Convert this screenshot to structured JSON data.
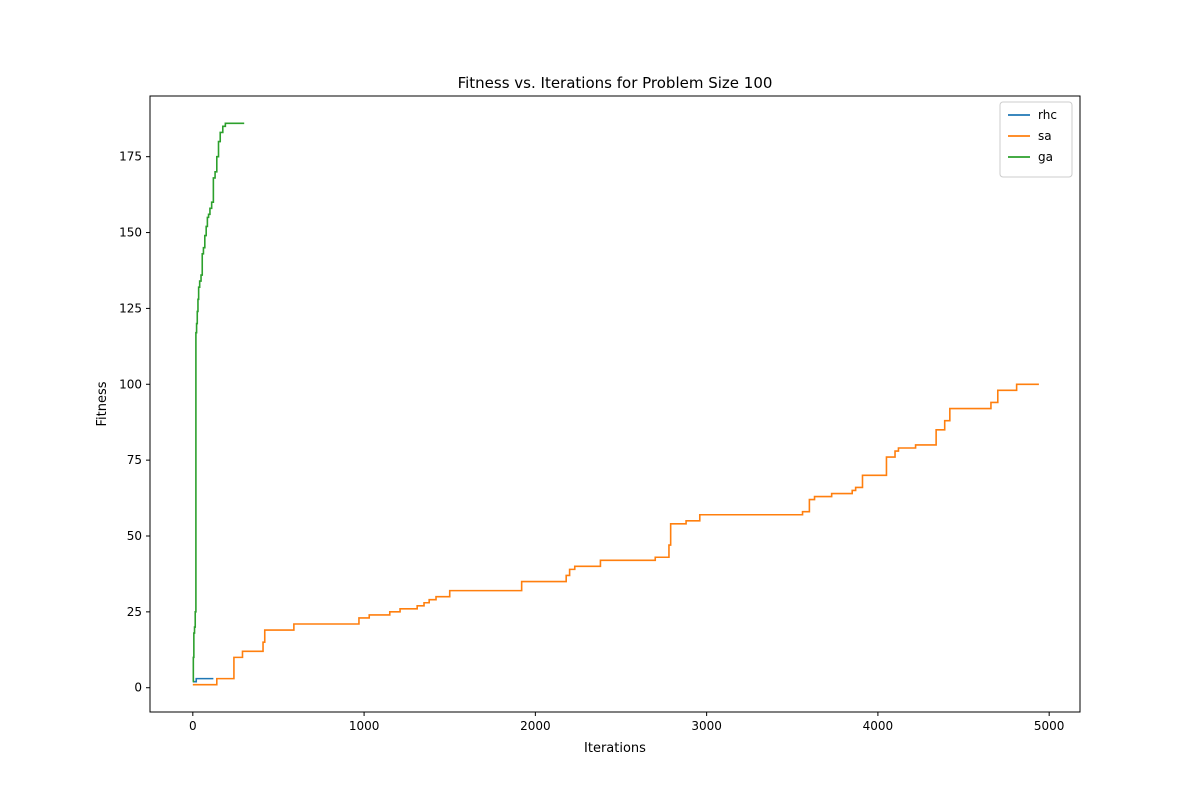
{
  "chart_data": {
    "type": "line",
    "title": "Fitness vs. Iterations for Problem Size 100",
    "xlabel": "Iterations",
    "ylabel": "Fitness",
    "xlim": [
      -250,
      5180
    ],
    "ylim": [
      -8,
      195
    ],
    "xticks": [
      0,
      1000,
      2000,
      3000,
      4000,
      5000
    ],
    "yticks": [
      0,
      25,
      50,
      75,
      100,
      125,
      150,
      175
    ],
    "grid": false,
    "legend_position": "top-right",
    "series": [
      {
        "name": "rhc",
        "color": "#1f77b4",
        "step": true,
        "x": [
          0,
          20,
          120
        ],
        "y": [
          2,
          3,
          3
        ]
      },
      {
        "name": "sa",
        "color": "#ff7f0e",
        "step": true,
        "x": [
          0,
          130,
          140,
          240,
          290,
          410,
          420,
          580,
          590,
          970,
          1030,
          1150,
          1210,
          1310,
          1350,
          1380,
          1420,
          1460,
          1500,
          1920,
          2180,
          2200,
          2230,
          2380,
          2700,
          2780,
          2790,
          2880,
          2960,
          3560,
          3600,
          3630,
          3730,
          3850,
          3870,
          3910,
          3980,
          4050,
          4100,
          4120,
          4220,
          4340,
          4390,
          4420,
          4660,
          4700,
          4800,
          4810,
          4940
        ],
        "y": [
          1,
          1,
          3,
          10,
          12,
          15,
          19,
          19,
          21,
          23,
          24,
          25,
          26,
          27,
          28,
          29,
          30,
          30,
          32,
          35,
          37,
          39,
          40,
          42,
          43,
          47,
          54,
          55,
          57,
          58,
          62,
          63,
          64,
          65,
          66,
          70,
          70,
          76,
          78,
          79,
          80,
          85,
          88,
          92,
          94,
          98,
          98,
          100,
          100
        ]
      },
      {
        "name": "ga",
        "color": "#2ca02c",
        "step": true,
        "x": [
          0,
          3,
          6,
          10,
          14,
          18,
          22,
          26,
          30,
          34,
          40,
          48,
          55,
          62,
          70,
          78,
          85,
          92,
          100,
          110,
          120,
          130,
          140,
          150,
          160,
          175,
          190,
          220,
          300
        ],
        "y": [
          2,
          10,
          18,
          20,
          25,
          117,
          120,
          124,
          128,
          132,
          134,
          136,
          143,
          145,
          149,
          152,
          155,
          156,
          158,
          160,
          168,
          170,
          175,
          180,
          183,
          185,
          186,
          186,
          186
        ]
      }
    ]
  }
}
